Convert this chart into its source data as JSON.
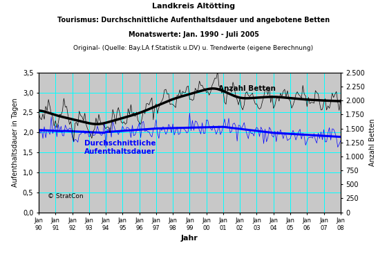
{
  "title_line1": "Landkreis Altötting",
  "title_line2": "Tourismus: Durchschnittliche Aufenthaltsdauer und angebotene Betten",
  "title_line3": "Monatswerte: Jan. 1990 - Juli 2005",
  "title_line4": "Original- (Quelle: Bay.LA f.Statistik u.DV) u. Trendwerte (eigene Berechnung)",
  "xlabel": "Jahr",
  "ylabel_left": "Aufenthaltsdauer in Tagen",
  "ylabel_right": "Anzahl Betten",
  "ylim_left": [
    0.0,
    3.5
  ],
  "ylim_right": [
    0,
    2500
  ],
  "yticks_left": [
    0.0,
    0.5,
    1.0,
    1.5,
    2.0,
    2.5,
    3.0,
    3.5
  ],
  "yticks_right": [
    0,
    250,
    500,
    750,
    1000,
    1250,
    1500,
    1750,
    2000,
    2250,
    2500
  ],
  "ytick_labels_right": [
    "0",
    "250",
    "500",
    "750",
    "1.000",
    "1.250",
    "1.500",
    "1.750",
    "2.000",
    "2.250",
    "2.500"
  ],
  "start_year": 1990,
  "end_year": 2008,
  "bg_color": "#c8c8c8",
  "grid_color": "#00ffff",
  "annotation_betten": "Anzahl Betten",
  "annotation_dauer": "Durchschnittliche\nAufenthaltsdauer",
  "copyright": "© StratCon"
}
